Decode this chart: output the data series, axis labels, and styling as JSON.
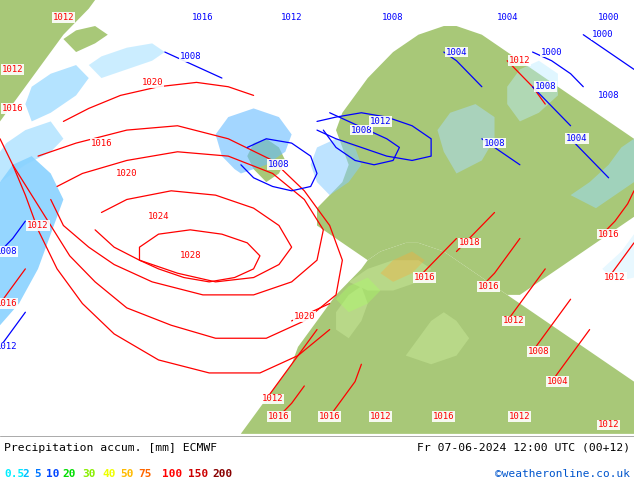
{
  "title_left": "Precipitation accum. [mm] ECMWF",
  "title_right": "Fr 07-06-2024 12:00 UTC (00+12)",
  "watermark": "©weatheronline.co.uk",
  "legend_values": [
    "0.5",
    "2",
    "5",
    "10",
    "20",
    "30",
    "40",
    "50",
    "75",
    "100",
    "150",
    "200"
  ],
  "legend_colors": [
    "#00eeff",
    "#00bbff",
    "#0077ff",
    "#0044ff",
    "#00dd00",
    "#88ee00",
    "#eeff00",
    "#ffbb00",
    "#ff6600",
    "#ff0000",
    "#cc0000",
    "#880000"
  ],
  "ocean_color": "#c8dff0",
  "land_color": "#a8c878",
  "land_color2": "#b8d888",
  "bottom_bar_color": "#ffffff",
  "fig_width": 6.34,
  "fig_height": 4.9,
  "dpi": 100
}
